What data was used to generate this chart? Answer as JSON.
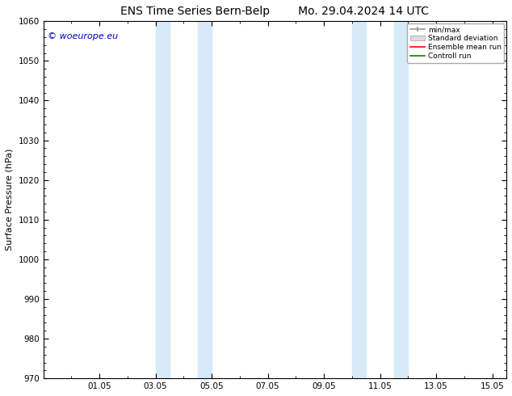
{
  "title_left": "ENS Time Series Bern-Belp",
  "title_right": "Mo. 29.04.2024 14 UTC",
  "ylabel": "Surface Pressure (hPa)",
  "ylim": [
    970,
    1060
  ],
  "yticks": [
    970,
    980,
    990,
    1000,
    1010,
    1020,
    1030,
    1040,
    1050,
    1060
  ],
  "xlim_start": 0.0,
  "xlim_end": 16.5,
  "xtick_labels": [
    "01.05",
    "03.05",
    "05.05",
    "07.05",
    "09.05",
    "11.05",
    "13.05",
    "15.05"
  ],
  "xtick_positions": [
    2.0,
    4.0,
    6.0,
    8.0,
    10.0,
    12.0,
    14.0,
    16.0
  ],
  "shaded_bands": [
    {
      "xmin": 4.0,
      "xmax": 4.5
    },
    {
      "xmin": 5.5,
      "xmax": 6.0
    },
    {
      "xmin": 11.0,
      "xmax": 11.5
    },
    {
      "xmin": 12.5,
      "xmax": 13.0
    }
  ],
  "band_color": "#d6eaf8",
  "watermark": "© woeurope.eu",
  "watermark_color": "#0000cc",
  "watermark_fontsize": 8,
  "legend_entries": [
    "min/max",
    "Standard deviation",
    "Ensemble mean run",
    "Controll run"
  ],
  "legend_line_colors": [
    "#999999",
    "#cccccc",
    "#ff0000",
    "#008800"
  ],
  "background_color": "#ffffff",
  "plot_bg_color": "#ffffff",
  "title_fontsize": 10,
  "axis_label_fontsize": 8,
  "tick_fontsize": 7.5
}
